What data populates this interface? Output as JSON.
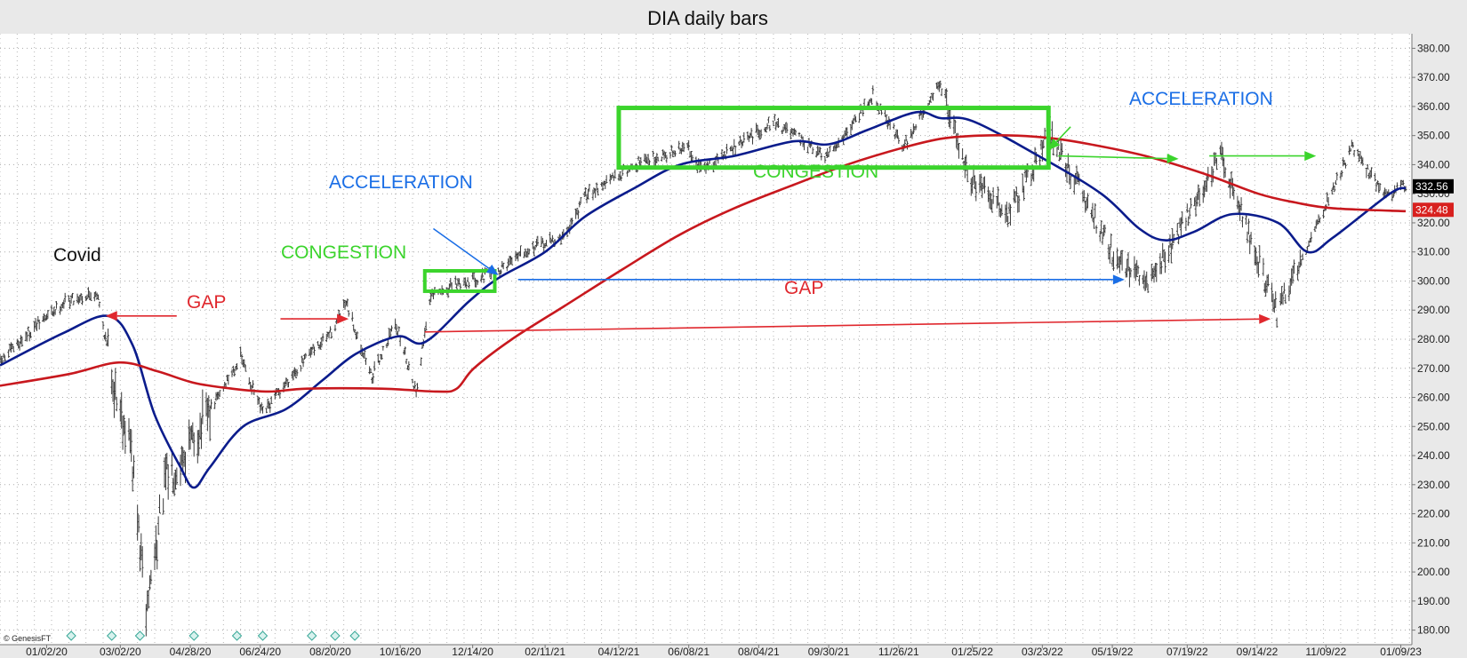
{
  "chart_data": {
    "type": "bar",
    "title": "DIA daily bars",
    "copyright": "© GenesisFT",
    "ylim": [
      175,
      385
    ],
    "y_ticks": [
      180,
      190,
      200,
      210,
      220,
      230,
      240,
      250,
      260,
      270,
      280,
      290,
      300,
      310,
      320,
      330,
      340,
      350,
      360,
      370,
      380
    ],
    "y_tick_labels": [
      "180.00",
      "190.00",
      "200.00",
      "210.00",
      "220.00",
      "230.00",
      "240.00",
      "250.00",
      "260.00",
      "270.00",
      "280.00",
      "290.00",
      "300.00",
      "310.00",
      "320.00",
      "330.00",
      "340.00",
      "350.00",
      "360.00",
      "370.00",
      "380.00"
    ],
    "x_range": [
      "2019-11-25",
      "2023-01-18"
    ],
    "x_ticks": [
      "2020-01-02",
      "2020-03-02",
      "2020-04-28",
      "2020-06-24",
      "2020-08-20",
      "2020-10-16",
      "2020-12-14",
      "2021-02-11",
      "2021-04-12",
      "2021-06-08",
      "2021-08-04",
      "2021-09-30",
      "2021-11-26",
      "2022-01-25",
      "2022-03-23",
      "2022-05-19",
      "2022-07-19",
      "2022-09-14",
      "2022-11-09",
      "2023-01-09"
    ],
    "x_tick_labels": [
      "01/02/20",
      "03/02/20",
      "04/28/20",
      "06/24/20",
      "08/20/20",
      "10/16/20",
      "12/14/20",
      "02/11/21",
      "04/12/21",
      "06/08/21",
      "08/04/21",
      "09/30/21",
      "11/26/21",
      "01/25/22",
      "03/23/22",
      "05/19/22",
      "07/19/22",
      "09/14/22",
      "11/09/22",
      "01/09/23"
    ],
    "last_price_label": "332.56",
    "last_price": 332.56,
    "ma_label": "324.48",
    "ma_value": 324.48,
    "colors": {
      "price_bars": "#3a3a3a",
      "ma_short": "#0b1c8c",
      "ma_long": "#c8181e",
      "congestion": "#3bd42c",
      "acceleration": "#1a6ee6",
      "gap": "#e0282e",
      "last_price_bg": "#000000",
      "ma_label_bg": "#d8201e"
    },
    "price_path": [
      [
        "2019-11-25",
        272
      ],
      [
        "2019-12-20",
        283
      ],
      [
        "2020-01-17",
        293
      ],
      [
        "2020-02-12",
        296
      ],
      [
        "2020-02-27",
        262
      ],
      [
        "2020-03-10",
        245
      ],
      [
        "2020-03-23",
        186
      ],
      [
        "2020-04-08",
        232
      ],
      [
        "2020-04-29",
        244
      ],
      [
        "2020-06-08",
        274
      ],
      [
        "2020-06-26",
        254
      ],
      [
        "2020-07-22",
        269
      ],
      [
        "2020-08-20",
        282
      ],
      [
        "2020-09-02",
        292
      ],
      [
        "2020-09-23",
        267
      ],
      [
        "2020-10-12",
        286
      ],
      [
        "2020-10-29",
        262
      ],
      [
        "2020-11-09",
        294
      ],
      [
        "2020-12-01",
        299
      ],
      [
        "2021-01-04",
        303
      ],
      [
        "2021-01-21",
        310
      ],
      [
        "2021-02-26",
        315
      ],
      [
        "2021-03-17",
        330
      ],
      [
        "2021-04-30",
        341
      ],
      [
        "2021-06-08",
        346
      ],
      [
        "2021-06-18",
        338
      ],
      [
        "2021-08-16",
        355
      ],
      [
        "2021-09-28",
        342
      ],
      [
        "2021-11-05",
        364
      ],
      [
        "2021-11-30",
        346
      ],
      [
        "2021-12-29",
        368
      ],
      [
        "2022-01-24",
        334
      ],
      [
        "2022-02-24",
        323
      ],
      [
        "2022-03-29",
        351
      ],
      [
        "2022-05-19",
        310
      ],
      [
        "2022-06-16",
        298
      ],
      [
        "2022-08-16",
        343
      ],
      [
        "2022-09-30",
        289
      ],
      [
        "2022-11-30",
        346
      ],
      [
        "2022-12-28",
        329
      ],
      [
        "2023-01-13",
        333
      ]
    ],
    "series": [
      {
        "values": [
          [
            "2019-11-25",
            271
          ],
          [
            "2020-01-15",
            282
          ],
          [
            "2020-02-21",
            288
          ],
          [
            "2020-03-12",
            278
          ],
          [
            "2020-03-30",
            254
          ],
          [
            "2020-04-20",
            236
          ],
          [
            "2020-05-01",
            229
          ],
          [
            "2020-05-14",
            236
          ],
          [
            "2020-06-10",
            250
          ],
          [
            "2020-07-15",
            256
          ],
          [
            "2020-08-14",
            266
          ],
          [
            "2020-09-10",
            275
          ],
          [
            "2020-10-14",
            281
          ],
          [
            "2020-11-05",
            279
          ],
          [
            "2020-12-11",
            293
          ],
          [
            "2021-01-04",
            301
          ],
          [
            "2021-02-11",
            310
          ],
          [
            "2021-03-15",
            322
          ],
          [
            "2021-04-25",
            332
          ],
          [
            "2021-06-01",
            340
          ],
          [
            "2021-07-15",
            343
          ],
          [
            "2021-09-01",
            348
          ],
          [
            "2021-09-30",
            347
          ],
          [
            "2021-11-01",
            352
          ],
          [
            "2021-12-10",
            358
          ],
          [
            "2021-12-30",
            356
          ],
          [
            "2022-01-25",
            355
          ],
          [
            "2022-03-20",
            343
          ],
          [
            "2022-05-10",
            330
          ],
          [
            "2022-06-10",
            318
          ],
          [
            "2022-07-01",
            314
          ],
          [
            "2022-07-25",
            317
          ],
          [
            "2022-08-25",
            323
          ],
          [
            "2022-10-01",
            320
          ],
          [
            "2022-10-25",
            310
          ],
          [
            "2022-11-15",
            315
          ],
          [
            "2022-12-31",
            330
          ],
          [
            "2023-01-13",
            332
          ]
        ]
      },
      {
        "values": [
          [
            "2019-11-25",
            264
          ],
          [
            "2020-01-20",
            268
          ],
          [
            "2020-03-01",
            272
          ],
          [
            "2020-04-01",
            269
          ],
          [
            "2020-05-01",
            265
          ],
          [
            "2020-06-01",
            263
          ],
          [
            "2020-07-01",
            262
          ],
          [
            "2020-08-01",
            263
          ],
          [
            "2020-10-01",
            263
          ],
          [
            "2020-11-15",
            262
          ],
          [
            "2020-12-01",
            263
          ],
          [
            "2020-12-15",
            270
          ],
          [
            "2021-01-15",
            280
          ],
          [
            "2021-03-01",
            292
          ],
          [
            "2021-04-15",
            304
          ],
          [
            "2021-06-01",
            316
          ],
          [
            "2021-07-15",
            325
          ],
          [
            "2021-09-01",
            333
          ],
          [
            "2021-10-15",
            340
          ],
          [
            "2021-12-01",
            346
          ],
          [
            "2022-01-01",
            349
          ],
          [
            "2022-02-01",
            350
          ],
          [
            "2022-03-01",
            350
          ],
          [
            "2022-04-01",
            349
          ],
          [
            "2022-05-01",
            347
          ],
          [
            "2022-06-15",
            343
          ],
          [
            "2022-08-01",
            337
          ],
          [
            "2022-09-15",
            330
          ],
          [
            "2022-10-15",
            327
          ],
          [
            "2022-11-15",
            325
          ],
          [
            "2023-01-13",
            324
          ]
        ]
      }
    ],
    "annotations": {
      "covid": {
        "text": "Covid",
        "date": "2020-01-16",
        "price": 288
      },
      "congestion_small": {
        "text": "CONGESTION",
        "box": [
          "2020-11-05",
          "2021-01-01",
          296.5,
          303.5
        ]
      },
      "congestion_large": {
        "text": "CONGESTION",
        "box": [
          "2021-04-12",
          "2022-03-28",
          339,
          359.5
        ]
      },
      "acceleration_left": {
        "text": "ACCELERATION",
        "arrow_from": [
          "2020-11-12",
          318
        ],
        "arrow_to": [
          "2021-01-04",
          302
        ]
      },
      "acceleration_right": {
        "text": "ACCELERATION",
        "arrow_from": [
          "2022-04-15",
          353
        ],
        "arrow_to": [
          "2022-03-28",
          345
        ]
      },
      "acc_line": {
        "from": [
          "2021-01-20",
          300.5
        ],
        "to": [
          "2022-05-29",
          300.5
        ]
      },
      "gap_left": {
        "text": "GAP",
        "from": [
          "2020-02-19",
          288
        ],
        "to": [
          "2020-09-04",
          287
        ]
      },
      "gap_right": {
        "text": "GAP",
        "from": [
          "2020-11-05",
          282.5
        ],
        "to": [
          "2022-09-25",
          287
        ]
      },
      "green_arrow_1": {
        "from": [
          "2022-04-05",
          343
        ],
        "to": [
          "2022-07-12",
          342
        ]
      },
      "green_arrow_2": {
        "from": [
          "2022-08-06",
          343
        ],
        "to": [
          "2022-11-01",
          343
        ]
      }
    }
  }
}
